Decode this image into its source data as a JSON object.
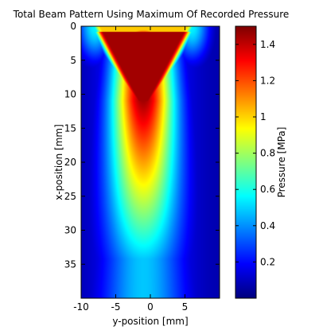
{
  "chart_data": {
    "type": "heatmap",
    "title": "Total Beam Pattern Using Maximum Of Recorded Pressure",
    "xlabel": "y-position [mm]",
    "ylabel": "x-position [mm]",
    "xlim": [
      -10,
      10
    ],
    "ylim": [
      0,
      40
    ],
    "y_reversed": true,
    "x_ticks": [
      "-10",
      "-5",
      "0",
      "5"
    ],
    "x_tick_values": [
      -10,
      -5,
      0,
      5
    ],
    "y_ticks": [
      "0",
      "5",
      "10",
      "15",
      "20",
      "25",
      "30",
      "35"
    ],
    "y_tick_values": [
      0,
      5,
      10,
      15,
      20,
      25,
      30,
      35
    ],
    "colormap": "jet",
    "colorbar": {
      "label": "Pressure [MPa]",
      "range": [
        0,
        1.5
      ],
      "ticks": [
        "0.2",
        "0.4",
        "0.6",
        "0.8",
        "1",
        "1.2",
        "1.4"
      ],
      "tick_values": [
        0.2,
        0.4,
        0.6,
        0.8,
        1.0,
        1.2,
        1.4
      ]
    },
    "field_profile": {
      "description": "Maximum recorded pressure field; peak ~1.5 MPa near x=2-14 mm at y=-1 mm, decaying to ~0.5 MPa at x=40 mm",
      "peak_value": 1.5,
      "center_y": -1
    }
  }
}
